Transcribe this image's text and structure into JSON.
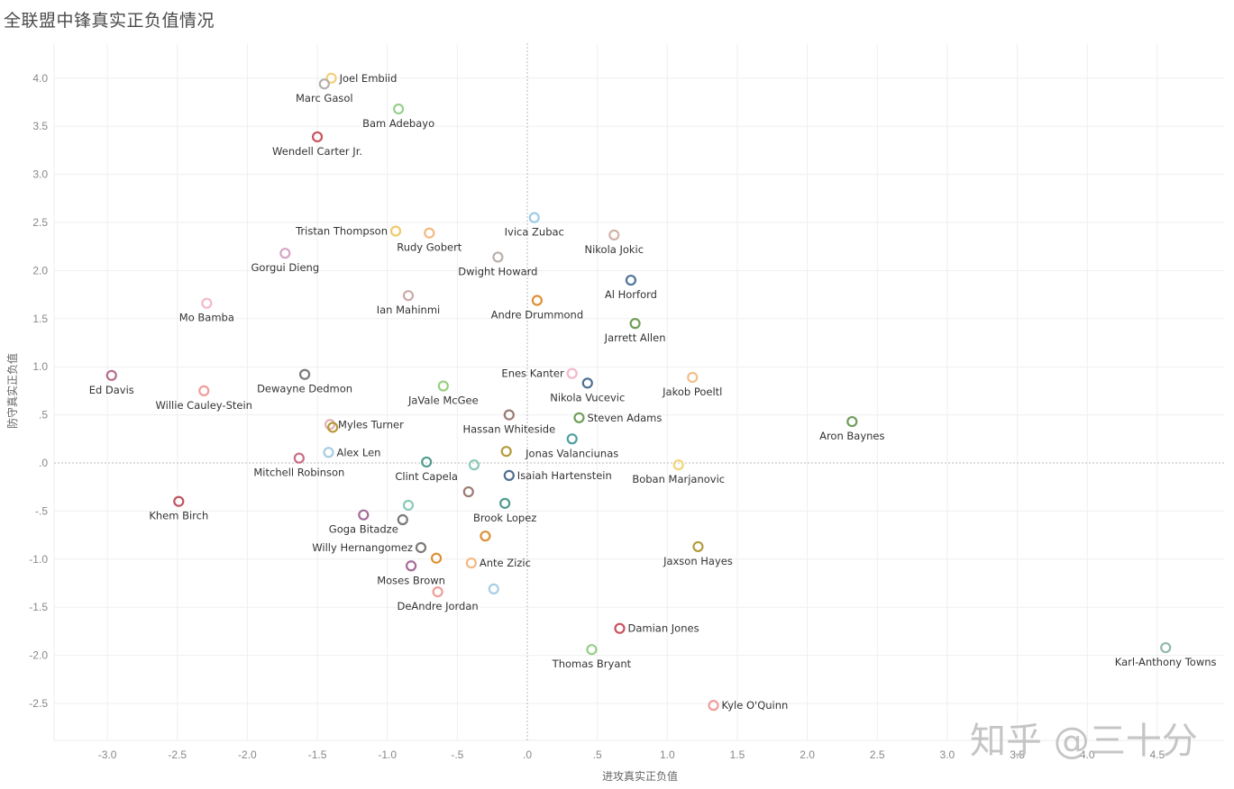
{
  "page": {
    "title": "全联盟中锋真实正负值情况",
    "watermark": "知乎 @三十分"
  },
  "chart_data": {
    "type": "scatter",
    "title": "全联盟中锋真实正负值情况",
    "xlabel": "进攻真实正负值",
    "ylabel": "防守真实正负值",
    "xlim": [
      -3.4,
      4.95
    ],
    "ylim": [
      -2.9,
      4.35
    ],
    "xticks": [
      -3.0,
      -2.5,
      -2.0,
      -1.5,
      -1.0,
      -0.5,
      0.0,
      0.5,
      1.0,
      1.5,
      2.0,
      2.5,
      3.0,
      3.5,
      4.0,
      4.5
    ],
    "xtick_labels": [
      "-3.0",
      "-2.5",
      "-2.0",
      "-1.5",
      "-1.0",
      "-.5",
      ".0",
      ".5",
      "1.0",
      "1.5",
      "2.0",
      "2.5",
      "3.0",
      "3.5",
      "4.0",
      "4.5"
    ],
    "yticks": [
      4.0,
      3.5,
      3.0,
      2.5,
      2.0,
      1.5,
      1.0,
      0.5,
      0.0,
      -0.5,
      -1.0,
      -1.5,
      -2.0,
      -2.5
    ],
    "ytick_labels": [
      "4.0",
      "3.5",
      "3.0",
      "2.5",
      "2.0",
      "1.5",
      "1.0",
      ".5",
      ".0",
      "-.5",
      "-1.0",
      "-1.5",
      "-2.0",
      "-2.5"
    ],
    "grid": true,
    "reference_lines": {
      "x": 0,
      "y": 0
    },
    "points": [
      {
        "name": "Joel Embiid",
        "x": -1.4,
        "y": 4.0,
        "color": "#f2cf7a",
        "label_pos": "right"
      },
      {
        "name": "Marc Gasol",
        "x": -1.45,
        "y": 3.94,
        "color": "#b5b0ab",
        "label_pos": "below"
      },
      {
        "name": "Bam Adebayo",
        "x": -0.92,
        "y": 3.68,
        "color": "#97cf8a",
        "label_pos": "below"
      },
      {
        "name": "Wendell Carter Jr.",
        "x": -1.5,
        "y": 3.39,
        "color": "#c9525e",
        "label_pos": "below"
      },
      {
        "name": "Ivica Zubac",
        "x": 0.05,
        "y": 2.55,
        "color": "#9fcbe6",
        "label_pos": "below"
      },
      {
        "name": "Tristan Thompson",
        "x": -0.94,
        "y": 2.41,
        "color": "#f0c96b",
        "label_pos": "left"
      },
      {
        "name": "Rudy Gobert",
        "x": -0.7,
        "y": 2.39,
        "color": "#f3b982",
        "label_pos": "below"
      },
      {
        "name": "Nikola Jokic",
        "x": 0.62,
        "y": 2.37,
        "color": "#d1b3a8",
        "label_pos": "below"
      },
      {
        "name": "Gorgui Dieng",
        "x": -1.73,
        "y": 2.18,
        "color": "#d5a6c3",
        "label_pos": "below"
      },
      {
        "name": "Dwight Howard",
        "x": -0.21,
        "y": 2.14,
        "color": "#b9afaa",
        "label_pos": "below"
      },
      {
        "name": "Al Horford",
        "x": 0.74,
        "y": 1.9,
        "color": "#50749c",
        "label_pos": "below"
      },
      {
        "name": "Ian Mahinmi",
        "x": -0.85,
        "y": 1.74,
        "color": "#cdabaa",
        "label_pos": "below"
      },
      {
        "name": "Andre Drummond",
        "x": 0.07,
        "y": 1.69,
        "color": "#dd9136",
        "label_pos": "below"
      },
      {
        "name": "Mo Bamba",
        "x": -2.29,
        "y": 1.66,
        "color": "#f3b9c6",
        "label_pos": "below"
      },
      {
        "name": "Jarrett Allen",
        "x": 0.77,
        "y": 1.45,
        "color": "#6f9e5a",
        "label_pos": "below"
      },
      {
        "name": "Enes Kanter",
        "x": 0.32,
        "y": 0.93,
        "color": "#f2b8c9",
        "label_pos": "left"
      },
      {
        "name": "Ed Davis",
        "x": -2.97,
        "y": 0.91,
        "color": "#b56b8c",
        "label_pos": "below"
      },
      {
        "name": "Dewayne Dedmon",
        "x": -1.59,
        "y": 0.92,
        "color": "#7c7876",
        "label_pos": "below"
      },
      {
        "name": "Jakob Poeltl",
        "x": 1.18,
        "y": 0.89,
        "color": "#f5be89",
        "label_pos": "below"
      },
      {
        "name": "Nikola Vucevic",
        "x": 0.43,
        "y": 0.83,
        "color": "#4e6f92",
        "label_pos": "below"
      },
      {
        "name": "JaVale McGee",
        "x": -0.6,
        "y": 0.8,
        "color": "#96d07c",
        "label_pos": "below"
      },
      {
        "name": "Willie Cauley-Stein",
        "x": -2.31,
        "y": 0.75,
        "color": "#ef9e9b",
        "label_pos": "below"
      },
      {
        "name": "Hassan Whiteside",
        "x": -0.13,
        "y": 0.5,
        "color": "#9a7b74",
        "label_pos": "below"
      },
      {
        "name": "Steven Adams",
        "x": 0.37,
        "y": 0.47,
        "color": "#6f9e5a",
        "label_pos": "right"
      },
      {
        "name": "Aron Baynes",
        "x": 2.32,
        "y": 0.43,
        "color": "#6f9e5a",
        "label_pos": "below"
      },
      {
        "name": "Myles Turner",
        "x": -1.41,
        "y": 0.4,
        "color": "#e2b0b0",
        "label_pos": "right"
      },
      {
        "name": "Myles Turner (2)",
        "x": -1.39,
        "y": 0.37,
        "color": "#b59a3b",
        "label_pos": "none"
      },
      {
        "name": "Jonas Valanciunas",
        "x": 0.32,
        "y": 0.25,
        "color": "#4f9ea0",
        "label_pos": "below"
      },
      {
        "name": "Jonas Valanciunas (2)",
        "x": -0.15,
        "y": 0.12,
        "color": "#b59a3b",
        "label_pos": "none"
      },
      {
        "name": "Alex Len",
        "x": -1.42,
        "y": 0.11,
        "color": "#a7cde3",
        "label_pos": "right"
      },
      {
        "name": "Mitchell Robinson",
        "x": -1.63,
        "y": 0.05,
        "color": "#cc6c85",
        "label_pos": "below"
      },
      {
        "name": "Clint Capela",
        "x": -0.72,
        "y": 0.01,
        "color": "#4f9b8f",
        "label_pos": "below"
      },
      {
        "name": "Clint Capela (2)",
        "x": -0.38,
        "y": -0.02,
        "color": "#8cc9b8",
        "label_pos": "none"
      },
      {
        "name": "Boban Marjanovic",
        "x": 1.08,
        "y": -0.02,
        "color": "#f0d57b",
        "label_pos": "below"
      },
      {
        "name": "Isaiah Hartenstein",
        "x": -0.13,
        "y": -0.13,
        "color": "#4e6f92",
        "label_pos": "right"
      },
      {
        "name": "Hassan Whiteside (2)",
        "x": -0.42,
        "y": -0.3,
        "color": "#9a7b74",
        "label_pos": "none"
      },
      {
        "name": "Khem Birch",
        "x": -2.49,
        "y": -0.4,
        "color": "#c15462",
        "label_pos": "below"
      },
      {
        "name": "Brook Lopez",
        "x": -0.16,
        "y": -0.42,
        "color": "#4f9b8f",
        "label_pos": "below"
      },
      {
        "name": "Goga Bitadze (2)",
        "x": -0.85,
        "y": -0.44,
        "color": "#8cc9b8",
        "label_pos": "none"
      },
      {
        "name": "Goga Bitadze",
        "x": -1.17,
        "y": -0.54,
        "color": "#a56c9a",
        "label_pos": "below"
      },
      {
        "name": "Goga Bitadze (3)",
        "x": -0.89,
        "y": -0.59,
        "color": "#7c7876",
        "label_pos": "none"
      },
      {
        "name": "Brook Lopez (2)",
        "x": -0.3,
        "y": -0.76,
        "color": "#dd9136",
        "label_pos": "none"
      },
      {
        "name": "Jaxson Hayes",
        "x": 1.22,
        "y": -0.87,
        "color": "#b59a3b",
        "label_pos": "below"
      },
      {
        "name": "Willy Hernangomez",
        "x": -0.76,
        "y": -0.88,
        "color": "#7c7876",
        "label_pos": "left"
      },
      {
        "name": "Willy Hernangomez (2)",
        "x": -0.65,
        "y": -0.99,
        "color": "#dd9136",
        "label_pos": "none"
      },
      {
        "name": "Ante Zizic",
        "x": -0.4,
        "y": -1.04,
        "color": "#f3b982",
        "label_pos": "right"
      },
      {
        "name": "Moses Brown",
        "x": -0.83,
        "y": -1.07,
        "color": "#a56c9a",
        "label_pos": "below"
      },
      {
        "name": "Ante Zizic (2)",
        "x": -0.24,
        "y": -1.31,
        "color": "#a7cde3",
        "label_pos": "none"
      },
      {
        "name": "DeAndre Jordan",
        "x": -0.64,
        "y": -1.34,
        "color": "#ef9e9b",
        "label_pos": "below"
      },
      {
        "name": "Damian Jones",
        "x": 0.66,
        "y": -1.72,
        "color": "#c9525e",
        "label_pos": "right"
      },
      {
        "name": "Karl-Anthony Towns",
        "x": 4.56,
        "y": -1.92,
        "color": "#8fb9ac",
        "label_pos": "below"
      },
      {
        "name": "Thomas Bryant",
        "x": 0.46,
        "y": -1.94,
        "color": "#97cf8a",
        "label_pos": "below"
      },
      {
        "name": "Kyle O'Quinn",
        "x": 1.33,
        "y": -2.52,
        "color": "#ef9e9b",
        "label_pos": "right"
      }
    ]
  }
}
